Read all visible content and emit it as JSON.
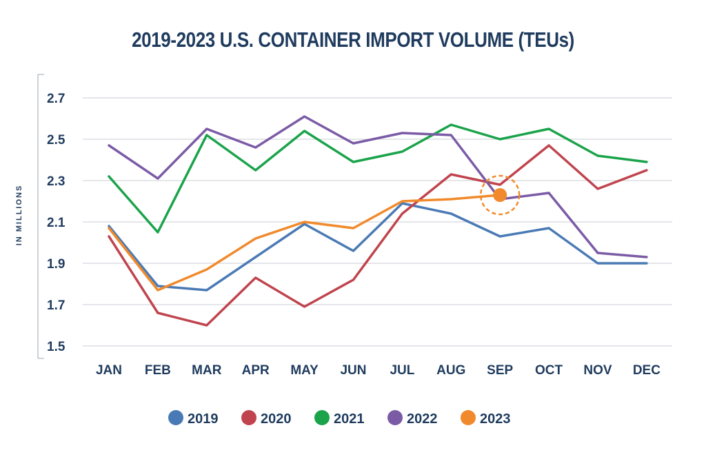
{
  "chart_data": {
    "type": "line",
    "title": "2019-2023 U.S. CONTAINER IMPORT VOLUME (TEUs)",
    "ylabel": "IN MILLIONS",
    "xlabel": "",
    "categories": [
      "JAN",
      "FEB",
      "MAR",
      "APR",
      "MAY",
      "JUN",
      "JUL",
      "AUG",
      "SEP",
      "OCT",
      "NOV",
      "DEC"
    ],
    "yticks": [
      "2.7",
      "2.5",
      "2.3",
      "2.1",
      "1.9",
      "1.7",
      "1.5"
    ],
    "ylim": [
      1.5,
      2.7
    ],
    "grid": true,
    "legend_position": "bottom",
    "series": [
      {
        "name": "2019",
        "color": "#4a7ab5",
        "values": [
          2.08,
          1.79,
          1.77,
          1.93,
          2.09,
          1.96,
          2.19,
          2.14,
          2.03,
          2.07,
          1.9,
          1.9
        ]
      },
      {
        "name": "2020",
        "color": "#c0444e",
        "values": [
          2.03,
          1.66,
          1.6,
          1.83,
          1.69,
          1.82,
          2.14,
          2.33,
          2.28,
          2.47,
          2.26,
          2.35
        ]
      },
      {
        "name": "2021",
        "color": "#1aa34a",
        "values": [
          2.32,
          2.05,
          2.52,
          2.35,
          2.54,
          2.39,
          2.44,
          2.57,
          2.5,
          2.55,
          2.42,
          2.39
        ]
      },
      {
        "name": "2022",
        "color": "#7b5ba6",
        "values": [
          2.47,
          2.31,
          2.55,
          2.46,
          2.61,
          2.48,
          2.53,
          2.52,
          2.21,
          2.24,
          1.95,
          1.93
        ]
      },
      {
        "name": "2023",
        "color": "#f08a2c",
        "values": [
          2.07,
          1.77,
          1.87,
          2.02,
          2.1,
          2.07,
          2.2,
          2.21,
          2.23,
          null,
          null,
          null
        ]
      }
    ],
    "highlight": {
      "series": "2023",
      "category": "SEP",
      "value": 2.23
    }
  }
}
